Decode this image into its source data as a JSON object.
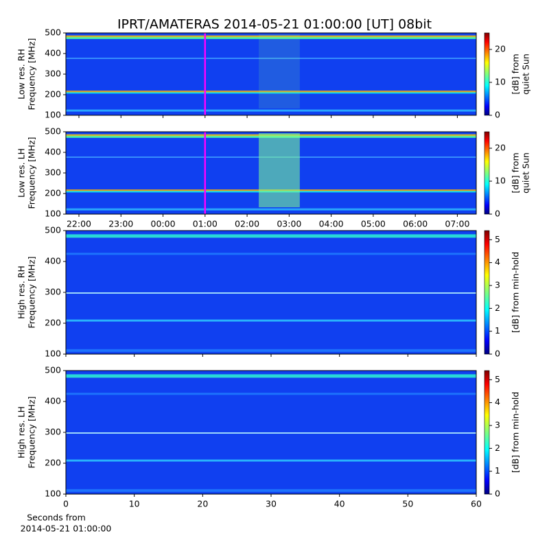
{
  "title": "IPRT/AMATERAS 2014-05-21 01:00:00 [UT]   08bit",
  "chart_data": [
    {
      "type": "heatmap",
      "ylabel": [
        "Low res. RH",
        "Frequency [MHz]"
      ],
      "ylim": [
        100,
        500
      ],
      "yticks": [
        100,
        200,
        300,
        400,
        500
      ],
      "xlim": [
        21.69,
        31.45
      ],
      "xticks": [
        {
          "value": 22,
          "label": "22:00"
        },
        {
          "value": 23,
          "label": "23:00"
        },
        {
          "value": 24,
          "label": "00:00"
        },
        {
          "value": 25,
          "label": "01:00"
        },
        {
          "value": 26,
          "label": "02:00"
        },
        {
          "value": 27,
          "label": "03:00"
        },
        {
          "value": 28,
          "label": "04:00"
        },
        {
          "value": 29,
          "label": "05:00"
        },
        {
          "value": 30,
          "label": "06:00"
        },
        {
          "value": 31,
          "label": "07:00"
        }
      ],
      "xticklabels": false,
      "marker_x": 25,
      "marker_color": "#ff00ff",
      "colorbar_label": [
        "[dB] from",
        "quiet Sun"
      ],
      "clim": [
        0,
        25
      ],
      "cticks": [
        0,
        10,
        20
      ]
    },
    {
      "type": "heatmap",
      "ylabel": [
        "Low res. LH",
        "Frequency [MHz]"
      ],
      "ylim": [
        100,
        500
      ],
      "yticks": [
        100,
        200,
        300,
        400,
        500
      ],
      "xlim": [
        21.69,
        31.45
      ],
      "xticks": [
        {
          "value": 22,
          "label": "22:00"
        },
        {
          "value": 23,
          "label": "23:00"
        },
        {
          "value": 24,
          "label": "00:00"
        },
        {
          "value": 25,
          "label": "01:00"
        },
        {
          "value": 26,
          "label": "02:00"
        },
        {
          "value": 27,
          "label": "03:00"
        },
        {
          "value": 28,
          "label": "04:00"
        },
        {
          "value": 29,
          "label": "05:00"
        },
        {
          "value": 30,
          "label": "06:00"
        },
        {
          "value": 31,
          "label": "07:00"
        }
      ],
      "xticklabels": true,
      "marker_x": 25,
      "marker_color": "#ff00ff",
      "colorbar_label": [
        "[dB] from",
        "quiet Sun"
      ],
      "clim": [
        0,
        25
      ],
      "cticks": [
        0,
        10,
        20
      ]
    },
    {
      "type": "heatmap",
      "ylabel": [
        "High res. RH",
        "Frequency [MHz]"
      ],
      "ylim": [
        100,
        500
      ],
      "yticks": [
        100,
        200,
        300,
        400,
        500
      ],
      "xlim": [
        0,
        60
      ],
      "xticks": [
        0,
        10,
        20,
        30,
        40,
        50,
        60
      ],
      "xticklabels": false,
      "colorbar_label": [
        "[dB] from min-hold"
      ],
      "clim": [
        0,
        5.4
      ],
      "cticks": [
        0,
        1,
        2,
        3,
        4,
        5
      ]
    },
    {
      "type": "heatmap",
      "ylabel": [
        "High res. LH",
        "Frequency [MHz]"
      ],
      "ylim": [
        100,
        500
      ],
      "yticks": [
        100,
        200,
        300,
        400,
        500
      ],
      "xlim": [
        0,
        60
      ],
      "xticks": [
        0,
        10,
        20,
        30,
        40,
        50,
        60
      ],
      "xticklabels": true,
      "xlabel": [
        "Seconds from",
        "2014-05-21 01:00:00"
      ],
      "colorbar_label": [
        "[dB] from min-hold"
      ],
      "clim": [
        0,
        5.4
      ],
      "cticks": [
        0,
        1,
        2,
        3,
        4,
        5
      ]
    }
  ]
}
